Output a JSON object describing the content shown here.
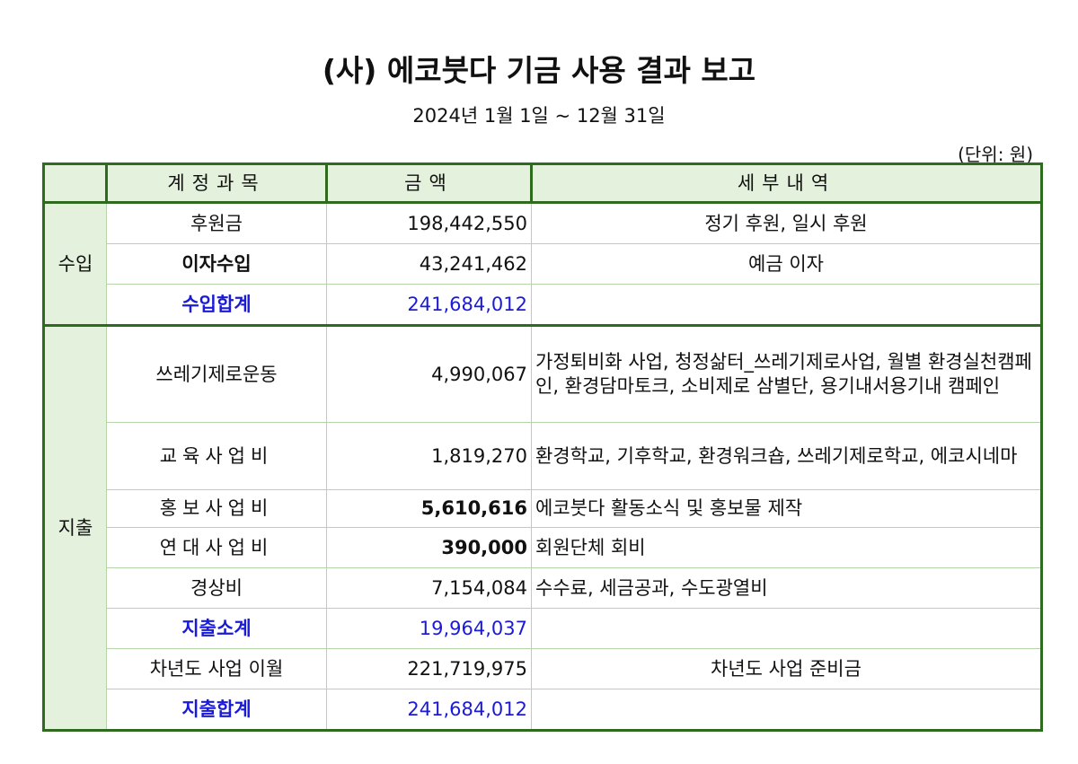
{
  "title": "(사) 에코붓다 기금 사용 결과 보고",
  "period": "2024년 1월 1일 ~ 12월 31일",
  "unit": "(단위: 원)",
  "headers": {
    "item": "계정과목",
    "amount": "금액",
    "detail": "세부내역"
  },
  "income": {
    "category": "수입",
    "rows": [
      {
        "item": "후원금",
        "amount": "198,442,550",
        "detail": "정기 후원, 일시 후원"
      },
      {
        "item": "이자수입",
        "amount": "43,241,462",
        "detail": "예금 이자"
      },
      {
        "item": "수입합계",
        "amount": "241,684,012",
        "detail": ""
      }
    ]
  },
  "expense": {
    "category": "지출",
    "rows": [
      {
        "item": "쓰레기제로운동",
        "amount": "4,990,067",
        "detail": "가정퇴비화 사업, 청정삶터_쓰레기제로사업, 월별 환경실천캠페인, 환경담마토크, 소비제로 삼별단, 용기내서용기내 캠페인"
      },
      {
        "item": "교육사업비",
        "amount": "1,819,270",
        "detail": "환경학교, 기후학교, 환경워크숍, 쓰레기제로학교, 에코시네마"
      },
      {
        "item": "홍보사업비",
        "amount": "5,610,616",
        "detail": "에코붓다 활동소식 및 홍보물 제작"
      },
      {
        "item": "연대사업비",
        "amount": "390,000",
        "detail": "회원단체 회비"
      },
      {
        "item": "경상비",
        "amount": "7,154,084",
        "detail": "수수료, 세금공과, 수도광열비"
      },
      {
        "item": "지출소계",
        "amount": "19,964,037",
        "detail": ""
      },
      {
        "item": "차년도 사업 이월",
        "amount": "221,719,975",
        "detail": "차년도 사업 준비금"
      },
      {
        "item": "지출합계",
        "amount": "241,684,012",
        "detail": ""
      }
    ]
  },
  "colors": {
    "border": "#2e6b1f",
    "header_fill": "#e4f1dc",
    "sum_text": "#1a1ad8"
  }
}
